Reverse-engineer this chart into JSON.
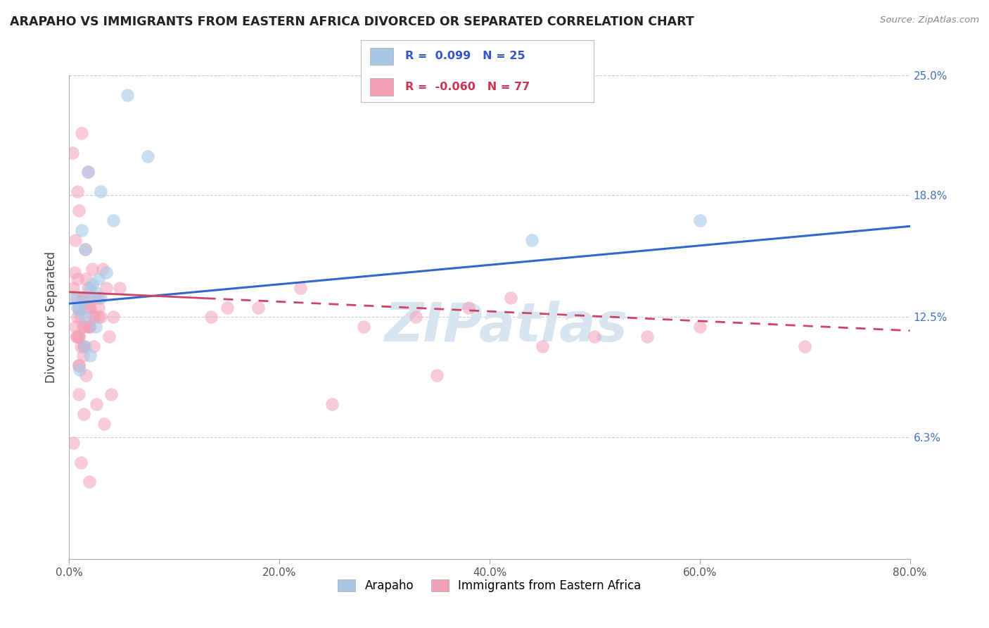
{
  "title": "ARAPAHO VS IMMIGRANTS FROM EASTERN AFRICA DIVORCED OR SEPARATED CORRELATION CHART",
  "source": "Source: ZipAtlas.com",
  "ylabel": "Divorced or Separated",
  "xlim": [
    0.0,
    80.0
  ],
  "ylim": [
    0.0,
    25.0
  ],
  "yticks": [
    6.3,
    12.5,
    18.8,
    25.0
  ],
  "xticks": [
    0.0,
    20.0,
    40.0,
    60.0,
    80.0
  ],
  "xtick_labels": [
    "0.0%",
    "20.0%",
    "40.0%",
    "60.0%",
    "80.0%"
  ],
  "blue_label": "Arapaho",
  "pink_label": "Immigrants from Eastern Africa",
  "blue_R": 0.099,
  "blue_N": 25,
  "pink_R": -0.06,
  "pink_N": 77,
  "blue_color": "#a8c8e8",
  "pink_color": "#f4a0b8",
  "blue_line_color": "#3366cc",
  "pink_line_color": "#cc4466",
  "watermark_color": "#d8e4f0",
  "blue_trendline_start_y": 13.2,
  "blue_trendline_end_y": 17.2,
  "pink_trendline_start_y": 13.8,
  "pink_trendline_end_y": 11.8,
  "pink_solid_end_x": 13.0,
  "blue_scatter_x": [
    0.5,
    1.8,
    5.5,
    3.0,
    7.5,
    1.2,
    2.8,
    1.5,
    2.0,
    4.2,
    2.5,
    1.0,
    3.5,
    1.8,
    2.2,
    1.0,
    3.0,
    1.5,
    0.8,
    2.5,
    1.5,
    44.0,
    60.0,
    2.0,
    1.0
  ],
  "blue_scatter_y": [
    13.5,
    20.0,
    24.0,
    19.0,
    20.8,
    17.0,
    14.5,
    16.0,
    14.0,
    17.5,
    13.8,
    13.2,
    14.8,
    13.5,
    14.2,
    12.8,
    13.5,
    12.5,
    13.0,
    12.0,
    11.0,
    16.5,
    17.5,
    10.5,
    9.8
  ],
  "pink_scatter_x": [
    0.5,
    0.3,
    0.8,
    1.2,
    1.8,
    0.9,
    0.6,
    1.5,
    2.2,
    2.8,
    0.8,
    0.4,
    1.3,
    2.0,
    1.6,
    0.7,
    3.2,
    2.5,
    1.0,
    0.8,
    1.4,
    1.8,
    2.3,
    0.9,
    1.7,
    3.0,
    0.6,
    1.4,
    1.9,
    1.1,
    0.7,
    3.5,
    4.2,
    1.3,
    1.9,
    0.9,
    2.3,
    1.4,
    0.9,
    0.7,
    1.1,
    1.8,
    1.3,
    2.8,
    0.9,
    3.8,
    2.3,
    1.6,
    0.9,
    0.4,
    1.4,
    1.9,
    3.3,
    2.6,
    1.1,
    4.0,
    4.8,
    2.8,
    1.4,
    1.9,
    0.9,
    1.4,
    13.5,
    22.0,
    28.0,
    18.0,
    42.0,
    33.0,
    50.0,
    38.0,
    60.0,
    70.0,
    55.0,
    45.0,
    25.0,
    35.0,
    15.0
  ],
  "pink_scatter_y": [
    14.8,
    21.0,
    19.0,
    22.0,
    20.0,
    18.0,
    16.5,
    16.0,
    15.0,
    13.5,
    14.5,
    14.0,
    13.5,
    13.0,
    14.5,
    13.5,
    15.0,
    13.5,
    13.0,
    12.5,
    12.0,
    14.0,
    12.5,
    11.5,
    13.0,
    12.5,
    12.0,
    13.5,
    12.0,
    12.5,
    11.5,
    14.0,
    12.5,
    12.0,
    13.0,
    11.5,
    12.5,
    13.5,
    13.0,
    11.5,
    11.0,
    12.0,
    10.5,
    12.5,
    10.0,
    11.5,
    11.0,
    9.5,
    8.5,
    6.0,
    7.5,
    4.0,
    7.0,
    8.0,
    5.0,
    8.5,
    14.0,
    13.0,
    11.0,
    12.0,
    10.0,
    11.0,
    12.5,
    14.0,
    12.0,
    13.0,
    13.5,
    12.5,
    11.5,
    13.0,
    12.0,
    11.0,
    11.5,
    11.0,
    8.0,
    9.5,
    13.0
  ]
}
